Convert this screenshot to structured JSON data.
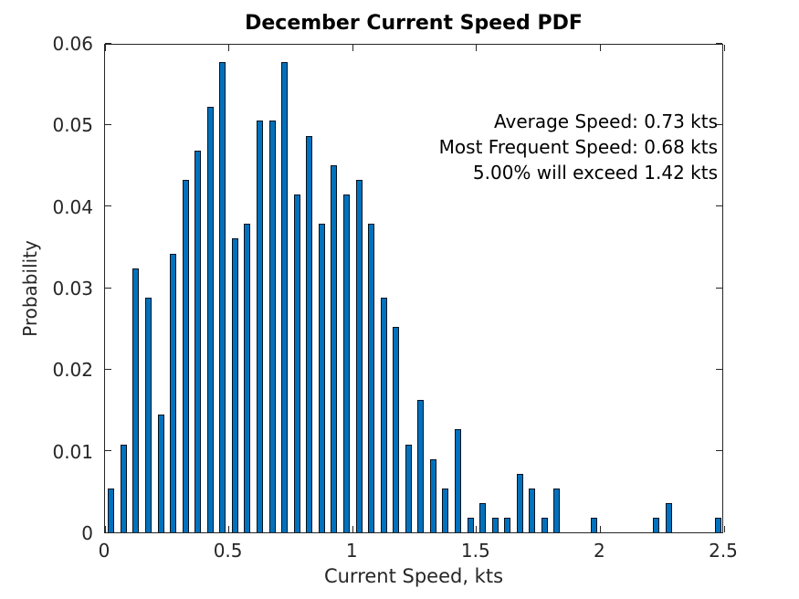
{
  "figure": {
    "title": "December Current Speed PDF",
    "background_color": "#ffffff",
    "axis_color": "#262626"
  },
  "annotations": {
    "lines": [
      "Average Speed: 0.73 kts",
      "Most Frequent Speed: 0.68 kts",
      "5.00% will exceed 1.42 kts"
    ]
  },
  "chart_data": {
    "type": "bar",
    "title": "December Current Speed PDF",
    "xlabel": "Current Speed, kts",
    "ylabel": "Probability",
    "xlim": [
      0,
      2.5
    ],
    "ylim": [
      0,
      0.06
    ],
    "grid": false,
    "bin_width": 0.05,
    "bar_color": "#0072BD",
    "bar_edge_color": "#06121f",
    "x_ticks": [
      0,
      0.5,
      1,
      1.5,
      2,
      2.5
    ],
    "x_tick_labels": [
      "0",
      "0.5",
      "1",
      "1.5",
      "2",
      "2.5"
    ],
    "y_ticks": [
      0,
      0.01,
      0.02,
      0.03,
      0.04,
      0.05,
      0.06
    ],
    "y_tick_labels": [
      "0",
      "0.01",
      "0.02",
      "0.03",
      "0.04",
      "0.05",
      "0.06"
    ],
    "annotations": [
      "Average Speed: 0.73 kts",
      "Most Frequent Speed: 0.68 kts",
      "5.00% will exceed 1.42 kts"
    ],
    "bars": [
      {
        "x": 0.025,
        "p": 0.0054
      },
      {
        "x": 0.075,
        "p": 0.0108
      },
      {
        "x": 0.125,
        "p": 0.0324
      },
      {
        "x": 0.175,
        "p": 0.0288
      },
      {
        "x": 0.225,
        "p": 0.0144
      },
      {
        "x": 0.275,
        "p": 0.0342
      },
      {
        "x": 0.325,
        "p": 0.0432
      },
      {
        "x": 0.375,
        "p": 0.0468
      },
      {
        "x": 0.425,
        "p": 0.0522
      },
      {
        "x": 0.475,
        "p": 0.0577
      },
      {
        "x": 0.525,
        "p": 0.036
      },
      {
        "x": 0.575,
        "p": 0.0378
      },
      {
        "x": 0.625,
        "p": 0.0505
      },
      {
        "x": 0.675,
        "p": 0.0505
      },
      {
        "x": 0.725,
        "p": 0.0577
      },
      {
        "x": 0.775,
        "p": 0.0414
      },
      {
        "x": 0.825,
        "p": 0.0486
      },
      {
        "x": 0.875,
        "p": 0.0378
      },
      {
        "x": 0.925,
        "p": 0.045
      },
      {
        "x": 0.975,
        "p": 0.0414
      },
      {
        "x": 1.025,
        "p": 0.0432
      },
      {
        "x": 1.075,
        "p": 0.0378
      },
      {
        "x": 1.125,
        "p": 0.0288
      },
      {
        "x": 1.175,
        "p": 0.0252
      },
      {
        "x": 1.225,
        "p": 0.0108
      },
      {
        "x": 1.275,
        "p": 0.0162
      },
      {
        "x": 1.325,
        "p": 0.009
      },
      {
        "x": 1.375,
        "p": 0.0054
      },
      {
        "x": 1.425,
        "p": 0.0126
      },
      {
        "x": 1.475,
        "p": 0.0018
      },
      {
        "x": 1.525,
        "p": 0.0036
      },
      {
        "x": 1.575,
        "p": 0.0018
      },
      {
        "x": 1.625,
        "p": 0.0018
      },
      {
        "x": 1.675,
        "p": 0.0072
      },
      {
        "x": 1.725,
        "p": 0.0054
      },
      {
        "x": 1.775,
        "p": 0.0018
      },
      {
        "x": 1.825,
        "p": 0.0054
      },
      {
        "x": 1.975,
        "p": 0.0018
      },
      {
        "x": 2.225,
        "p": 0.0018
      },
      {
        "x": 2.275,
        "p": 0.0036
      },
      {
        "x": 2.475,
        "p": 0.0018
      }
    ]
  }
}
